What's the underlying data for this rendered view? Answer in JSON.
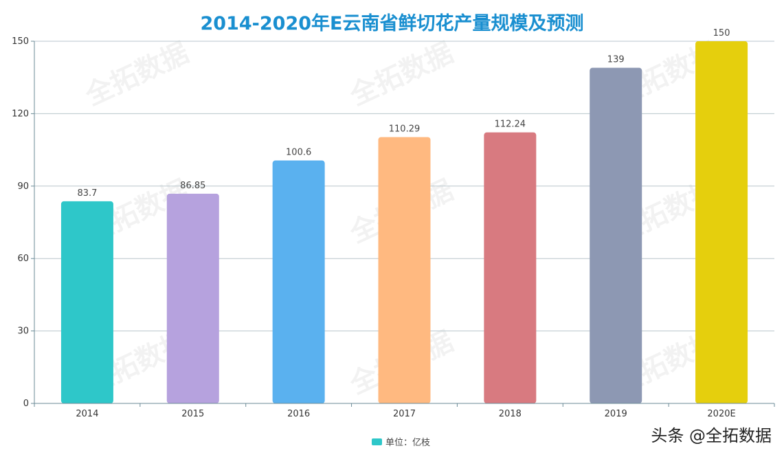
{
  "chart_data": {
    "type": "bar",
    "title": "2014-2020年E云南省鲜切花产量规模及预测",
    "categories": [
      "2014",
      "2015",
      "2016",
      "2017",
      "2018",
      "2019",
      "2020E"
    ],
    "values": [
      83.7,
      86.85,
      100.6,
      110.29,
      112.24,
      139,
      150
    ],
    "value_labels": [
      "83.7",
      "86.85",
      "100.6",
      "110.29",
      "112.24",
      "139",
      "150"
    ],
    "bar_colors": [
      "#2ec7c9",
      "#b6a2de",
      "#5ab1ef",
      "#ffb980",
      "#d87a80",
      "#8d98b3",
      "#e5cf0d"
    ],
    "y_ticks": [
      0,
      30,
      60,
      90,
      120,
      150
    ],
    "ylim": [
      0,
      150
    ],
    "grid": true,
    "legend": {
      "label": "单位：亿枝",
      "color": "#2ec7c9",
      "position": "bottom-center"
    }
  },
  "watermark": {
    "text": "全拓数据"
  },
  "footer": {
    "text": "头条 @全拓数据"
  }
}
